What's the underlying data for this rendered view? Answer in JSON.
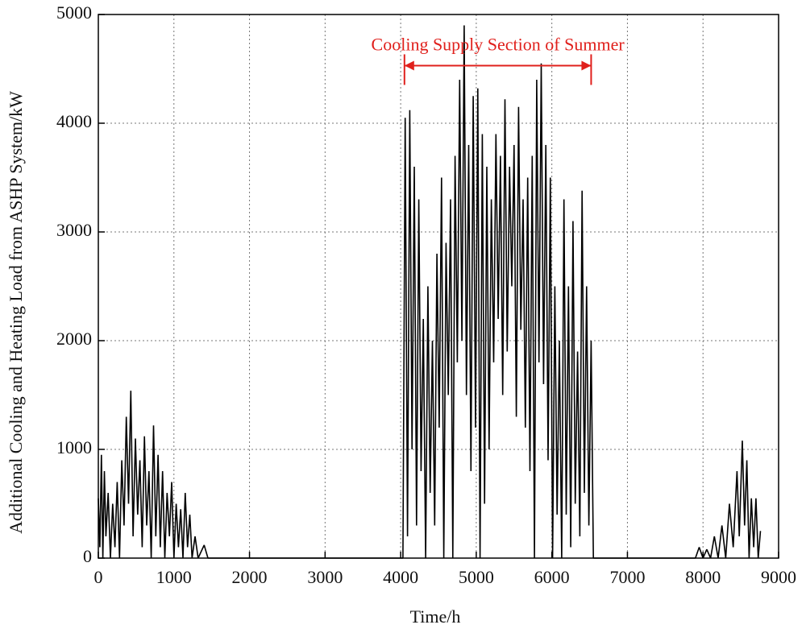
{
  "chart_data": {
    "type": "line",
    "xlabel": "Time/h",
    "ylabel": "Additional Cooling and Heating Load  from ASHP System/kW",
    "annotation": {
      "text": "Cooling Supply Section of Summer",
      "x": [
        4050,
        6520
      ],
      "y": 4530,
      "color": "#e0201c"
    },
    "xlim": [
      0,
      9000
    ],
    "xticks": [
      0,
      1000,
      2000,
      3000,
      4000,
      5000,
      6000,
      7000,
      8000,
      9000
    ],
    "ylim": [
      0,
      5000
    ],
    "yticks": [
      0,
      1000,
      2000,
      3000,
      4000,
      5000
    ],
    "grid": true,
    "series": [
      {
        "color": "#000000",
        "x": [
          0,
          20,
          40,
          60,
          80,
          100,
          130,
          160,
          190,
          220,
          250,
          280,
          310,
          340,
          370,
          400,
          430,
          460,
          490,
          520,
          550,
          580,
          610,
          640,
          670,
          700,
          730,
          760,
          790,
          820,
          850,
          880,
          910,
          940,
          970,
          1000,
          1030,
          1060,
          1090,
          1120,
          1150,
          1180,
          1210,
          1240,
          1280,
          1320,
          1400,
          1450,
          1500,
          4030,
          4060,
          4090,
          4120,
          4150,
          4180,
          4210,
          4240,
          4270,
          4300,
          4330,
          4360,
          4390,
          4420,
          4450,
          4480,
          4510,
          4540,
          4570,
          4600,
          4630,
          4660,
          4690,
          4720,
          4750,
          4780,
          4810,
          4840,
          4870,
          4900,
          4930,
          4960,
          4990,
          5020,
          5050,
          5080,
          5110,
          5140,
          5170,
          5200,
          5230,
          5260,
          5290,
          5320,
          5350,
          5380,
          5410,
          5440,
          5470,
          5500,
          5530,
          5560,
          5590,
          5620,
          5650,
          5680,
          5710,
          5740,
          5770,
          5800,
          5830,
          5860,
          5890,
          5920,
          5950,
          5980,
          6010,
          6040,
          6070,
          6100,
          6130,
          6160,
          6190,
          6220,
          6250,
          6280,
          6310,
          6340,
          6370,
          6400,
          6430,
          6460,
          6490,
          6520,
          6550,
          7900,
          7950,
          8000,
          8050,
          8100,
          8150,
          8200,
          8250,
          8300,
          8350,
          8400,
          8450,
          8480,
          8520,
          8550,
          8580,
          8610,
          8640,
          8670,
          8700,
          8730,
          8760
        ],
        "values": [
          550,
          100,
          950,
          0,
          800,
          200,
          600,
          0,
          500,
          100,
          700,
          0,
          900,
          300,
          1300,
          500,
          1540,
          200,
          1100,
          400,
          900,
          100,
          1120,
          300,
          800,
          0,
          1220,
          200,
          950,
          100,
          800,
          0,
          600,
          200,
          700,
          0,
          500,
          100,
          450,
          0,
          600,
          100,
          400,
          0,
          200,
          0,
          120,
          0,
          0,
          0,
          4050,
          200,
          4120,
          1000,
          3600,
          300,
          3300,
          800,
          2200,
          0,
          2500,
          600,
          2000,
          300,
          2800,
          1200,
          3500,
          0,
          2900,
          1500,
          3300,
          0,
          3700,
          1800,
          4400,
          2000,
          4900,
          1500,
          3800,
          800,
          4250,
          1200,
          4320,
          0,
          3900,
          500,
          3600,
          1000,
          3300,
          1800,
          3900,
          2200,
          3700,
          1500,
          4220,
          1900,
          3600,
          2500,
          3800,
          1300,
          4150,
          2100,
          3300,
          1200,
          3500,
          800,
          3700,
          0,
          4400,
          1800,
          4550,
          1600,
          3800,
          900,
          3500,
          0,
          2500,
          400,
          2000,
          0,
          3300,
          400,
          2500,
          100,
          3100,
          500,
          1900,
          200,
          3380,
          600,
          2500,
          300,
          2000,
          0,
          0,
          100,
          0,
          80,
          0,
          200,
          0,
          300,
          0,
          500,
          100,
          800,
          200,
          1080,
          300,
          900,
          0,
          550,
          100,
          550,
          0,
          250
        ]
      }
    ]
  }
}
